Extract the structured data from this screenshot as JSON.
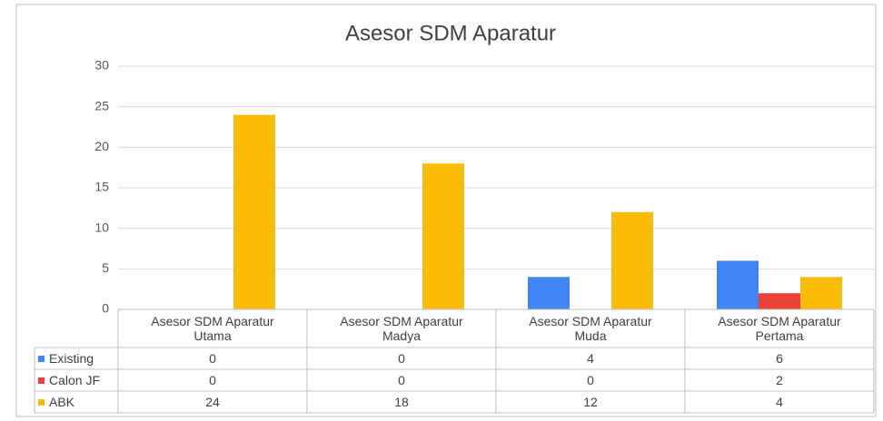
{
  "chart_data": {
    "type": "bar",
    "title": "Asesor SDM Aparatur",
    "categories": [
      "Asesor SDM Aparatur Utama",
      "Asesor SDM Aparatur Madya",
      "Asesor SDM Aparatur Muda",
      "Asesor SDM Aparatur Pertama"
    ],
    "series": [
      {
        "name": "Existing",
        "color": "#4285f4",
        "values": [
          0,
          0,
          4,
          6
        ]
      },
      {
        "name": "Calon JF",
        "color": "#ea4335",
        "values": [
          0,
          0,
          0,
          2
        ]
      },
      {
        "name": "ABK",
        "color": "#fbbc04",
        "values": [
          24,
          18,
          12,
          4
        ]
      }
    ],
    "ylim": [
      0,
      30
    ],
    "yticks": [
      0,
      5,
      10,
      15,
      20,
      25,
      30
    ],
    "grid": true,
    "data_table": true
  }
}
